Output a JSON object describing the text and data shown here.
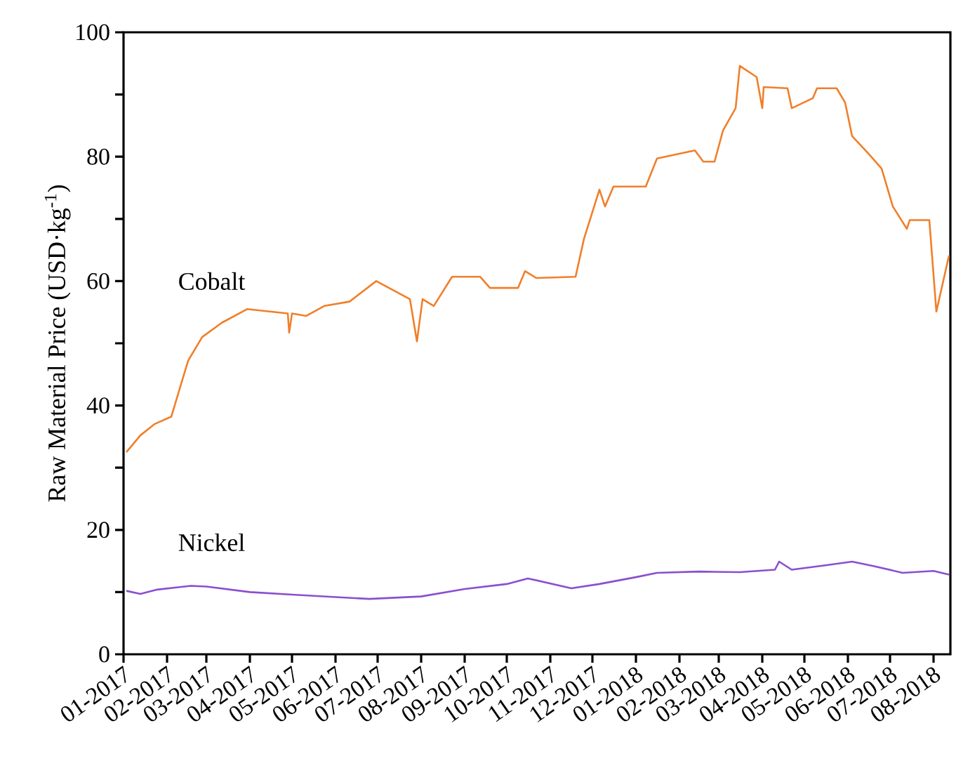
{
  "chart_data": {
    "type": "line",
    "ylabel": "Raw Material Price (USD·kg$^{-1}$)",
    "xlim": [
      "2017-01-01",
      "2018-08-13"
    ],
    "ylim": [
      0,
      100
    ],
    "xticks": [
      {
        "value": "2017-01",
        "label": "01-2017"
      },
      {
        "value": "2017-02",
        "label": "02-2017"
      },
      {
        "value": "2017-03",
        "label": "03-2017"
      },
      {
        "value": "2017-04",
        "label": "04-2017"
      },
      {
        "value": "2017-05",
        "label": "05-2017"
      },
      {
        "value": "2017-06",
        "label": "06-2017"
      },
      {
        "value": "2017-07",
        "label": "07-2017"
      },
      {
        "value": "2017-08",
        "label": "08-2017"
      },
      {
        "value": "2017-09",
        "label": "09-2017"
      },
      {
        "value": "2017-10",
        "label": "10-2017"
      },
      {
        "value": "2017-11",
        "label": "11-2017"
      },
      {
        "value": "2017-12",
        "label": "12-2017"
      },
      {
        "value": "2018-01",
        "label": "01-2018"
      },
      {
        "value": "2018-02",
        "label": "02-2018"
      },
      {
        "value": "2018-03",
        "label": "03-2018"
      },
      {
        "value": "2018-04",
        "label": "04-2018"
      },
      {
        "value": "2018-05",
        "label": "05-2018"
      },
      {
        "value": "2018-06",
        "label": "06-2018"
      },
      {
        "value": "2018-07",
        "label": "07-2018"
      },
      {
        "value": "2018-08",
        "label": "08-2018"
      }
    ],
    "yticks": [
      0,
      {
        "value": 10,
        "label": null
      },
      20,
      {
        "value": 30,
        "label": null
      },
      40,
      {
        "value": 50,
        "label": null
      },
      60,
      {
        "value": 70,
        "label": null
      },
      80,
      {
        "value": 90,
        "label": null
      },
      100
    ],
    "grid": false,
    "legend": false,
    "marker": "none",
    "line_style": "solid",
    "series": [
      {
        "name": "Cobalt",
        "color": "#f07f2a",
        "x": [
          "2017-01-03",
          "2017-01-13",
          "2017-01-23",
          "2017-02-04",
          "2017-02-16",
          "2017-02-26",
          "2017-03-12",
          "2017-03-30",
          "2017-04-28",
          "2017-04-29",
          "2017-05-01",
          "2017-05-11",
          "2017-05-24",
          "2017-06-11",
          "2017-06-30",
          "2017-07-24",
          "2017-07-29",
          "2017-08-02",
          "2017-08-10",
          "2017-08-23",
          "2017-09-12",
          "2017-09-19",
          "2017-10-09",
          "2017-10-14",
          "2017-10-22",
          "2017-11-19",
          "2017-11-25",
          "2017-12-06",
          "2017-12-10",
          "2017-12-16",
          "2018-01-08",
          "2018-01-16",
          "2018-02-12",
          "2018-02-18",
          "2018-02-26",
          "2018-03-04",
          "2018-03-13",
          "2018-03-16",
          "2018-03-28",
          "2018-04-01",
          "2018-04-02",
          "2018-04-19",
          "2018-04-22",
          "2018-05-07",
          "2018-05-10",
          "2018-05-24",
          "2018-05-30",
          "2018-06-04",
          "2018-06-16",
          "2018-06-25",
          "2018-07-03",
          "2018-07-13",
          "2018-07-15",
          "2018-07-29",
          "2018-08-03",
          "2018-08-12"
        ],
        "values": [
          32.5,
          35.2,
          37,
          38.2,
          47.2,
          51,
          53.3,
          55.5,
          54.8,
          51.7,
          54.8,
          54.4,
          56,
          56.7,
          60,
          57.1,
          50.3,
          57.1,
          56,
          60.7,
          60.7,
          58.9,
          58.9,
          61.6,
          60.5,
          60.7,
          66.8,
          74.7,
          72,
          75.2,
          75.2,
          79.7,
          81,
          79.2,
          79.2,
          84.2,
          87.8,
          94.6,
          92.8,
          87.8,
          91.2,
          91,
          87.8,
          89.4,
          91,
          91,
          88.7,
          83.3,
          80.4,
          78.1,
          72,
          68.4,
          69.8,
          69.8,
          55.1,
          64.1
        ]
      },
      {
        "name": "Nickel",
        "color": "#8a4fd0",
        "x": [
          "2017-01-03",
          "2017-01-13",
          "2017-01-25",
          "2017-02-18",
          "2017-03-01",
          "2017-04-01",
          "2017-05-01",
          "2017-06-01",
          "2017-06-25",
          "2017-08-01",
          "2017-09-01",
          "2017-10-01",
          "2017-10-16",
          "2017-11-16",
          "2017-12-06",
          "2018-01-01",
          "2018-01-16",
          "2018-02-15",
          "2018-03-16",
          "2018-04-10",
          "2018-04-13",
          "2018-04-22",
          "2018-05-16",
          "2018-06-04",
          "2018-06-19",
          "2018-07-10",
          "2018-08-01",
          "2018-08-12"
        ],
        "values": [
          10.2,
          9.7,
          10.4,
          11,
          10.9,
          10,
          9.6,
          9.2,
          8.9,
          9.3,
          10.5,
          11.3,
          12.2,
          10.6,
          11.3,
          12.4,
          13.1,
          13.3,
          13.2,
          13.6,
          14.9,
          13.6,
          14.3,
          14.9,
          14.2,
          13.1,
          13.4,
          12.8
        ]
      }
    ]
  }
}
